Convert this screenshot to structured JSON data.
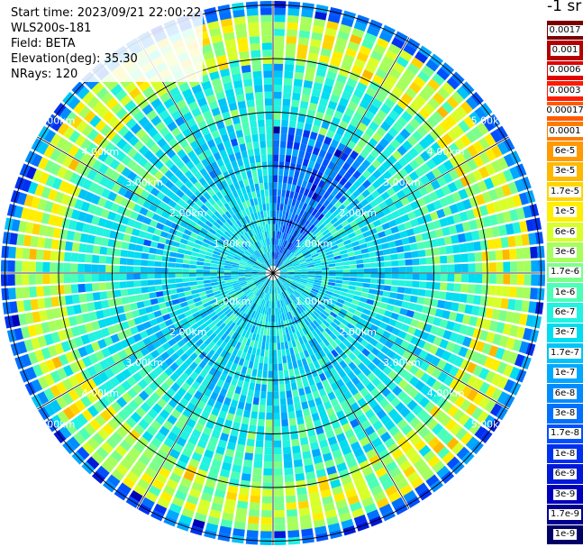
{
  "info": {
    "start_time": "Start time: 2023/09/21 22:00:22",
    "site": "WLS200s-181",
    "field": "Field: BETA",
    "elevation": "Elevation(deg): 35.30",
    "nrays": "NRays: 120"
  },
  "colorbar": {
    "title": "-1 sr",
    "levels": [
      {
        "label": "0.0017",
        "color": "#7a0000"
      },
      {
        "label": "0.001",
        "color": "#b40000"
      },
      {
        "label": "0.0006",
        "color": "#e00000"
      },
      {
        "label": "0.0003",
        "color": "#ff1a00"
      },
      {
        "label": "0.00017",
        "color": "#ff5a00"
      },
      {
        "label": "0.0001",
        "color": "#ff7a00"
      },
      {
        "label": "6e-5",
        "color": "#ff9a00"
      },
      {
        "label": "3e-5",
        "color": "#ffb800"
      },
      {
        "label": "1.7e-5",
        "color": "#ffd400"
      },
      {
        "label": "1e-5",
        "color": "#ffee00"
      },
      {
        "label": "6e-6",
        "color": "#d8ff2a"
      },
      {
        "label": "3e-6",
        "color": "#a6ff5c"
      },
      {
        "label": "1.7e-6",
        "color": "#7cff8a"
      },
      {
        "label": "1e-6",
        "color": "#4cffb6"
      },
      {
        "label": "6e-7",
        "color": "#22f2e0"
      },
      {
        "label": "3e-7",
        "color": "#00dcf0"
      },
      {
        "label": "1.7e-7",
        "color": "#00c4f8"
      },
      {
        "label": "1e-7",
        "color": "#00a8ff"
      },
      {
        "label": "6e-8",
        "color": "#008cff"
      },
      {
        "label": "3e-8",
        "color": "#0070ff"
      },
      {
        "label": "1.7e-8",
        "color": "#0050ff"
      },
      {
        "label": "1e-8",
        "color": "#0030f0"
      },
      {
        "label": "6e-9",
        "color": "#0018d8"
      },
      {
        "label": "3e-9",
        "color": "#0000bb"
      },
      {
        "label": "1.7e-9",
        "color": "#000090"
      },
      {
        "label": "1e-9",
        "color": "#000066"
      }
    ]
  },
  "range_labels": [
    "1.00km",
    "2.00km",
    "3.00km",
    "4.00km",
    "5.00km"
  ],
  "grid": {
    "rings": [
      1,
      2,
      3,
      4,
      5
    ],
    "spokes": 12
  }
}
